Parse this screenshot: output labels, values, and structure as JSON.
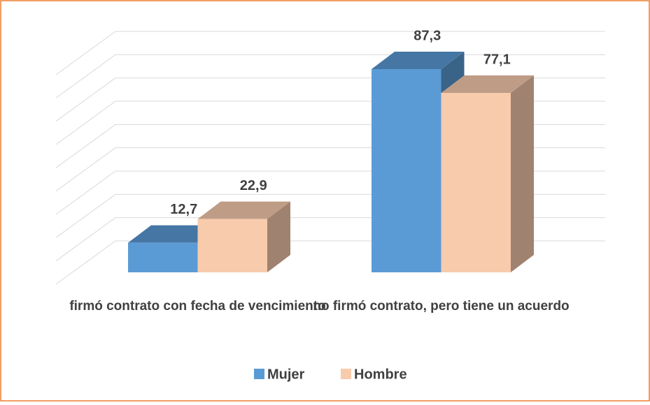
{
  "chart_data": {
    "type": "bar",
    "categories": [
      "firmó contrato con fecha de vencimiento",
      "no firmó contrato, pero tiene un acuerdo"
    ],
    "series": [
      {
        "name": "Mujer",
        "color": "#5b9bd5",
        "values": [
          12.7,
          87.3
        ],
        "value_labels": [
          "12,7",
          "87,3"
        ]
      },
      {
        "name": "Hombre",
        "color": "#f8cbad",
        "values": [
          22.9,
          77.1
        ],
        "value_labels": [
          "22,9",
          "77,1"
        ]
      }
    ],
    "ylim": [
      0,
      90
    ],
    "yticks": [
      0,
      10,
      20,
      30,
      40,
      50,
      60,
      70,
      80,
      90
    ],
    "grid": true,
    "legend": "bottom"
  }
}
